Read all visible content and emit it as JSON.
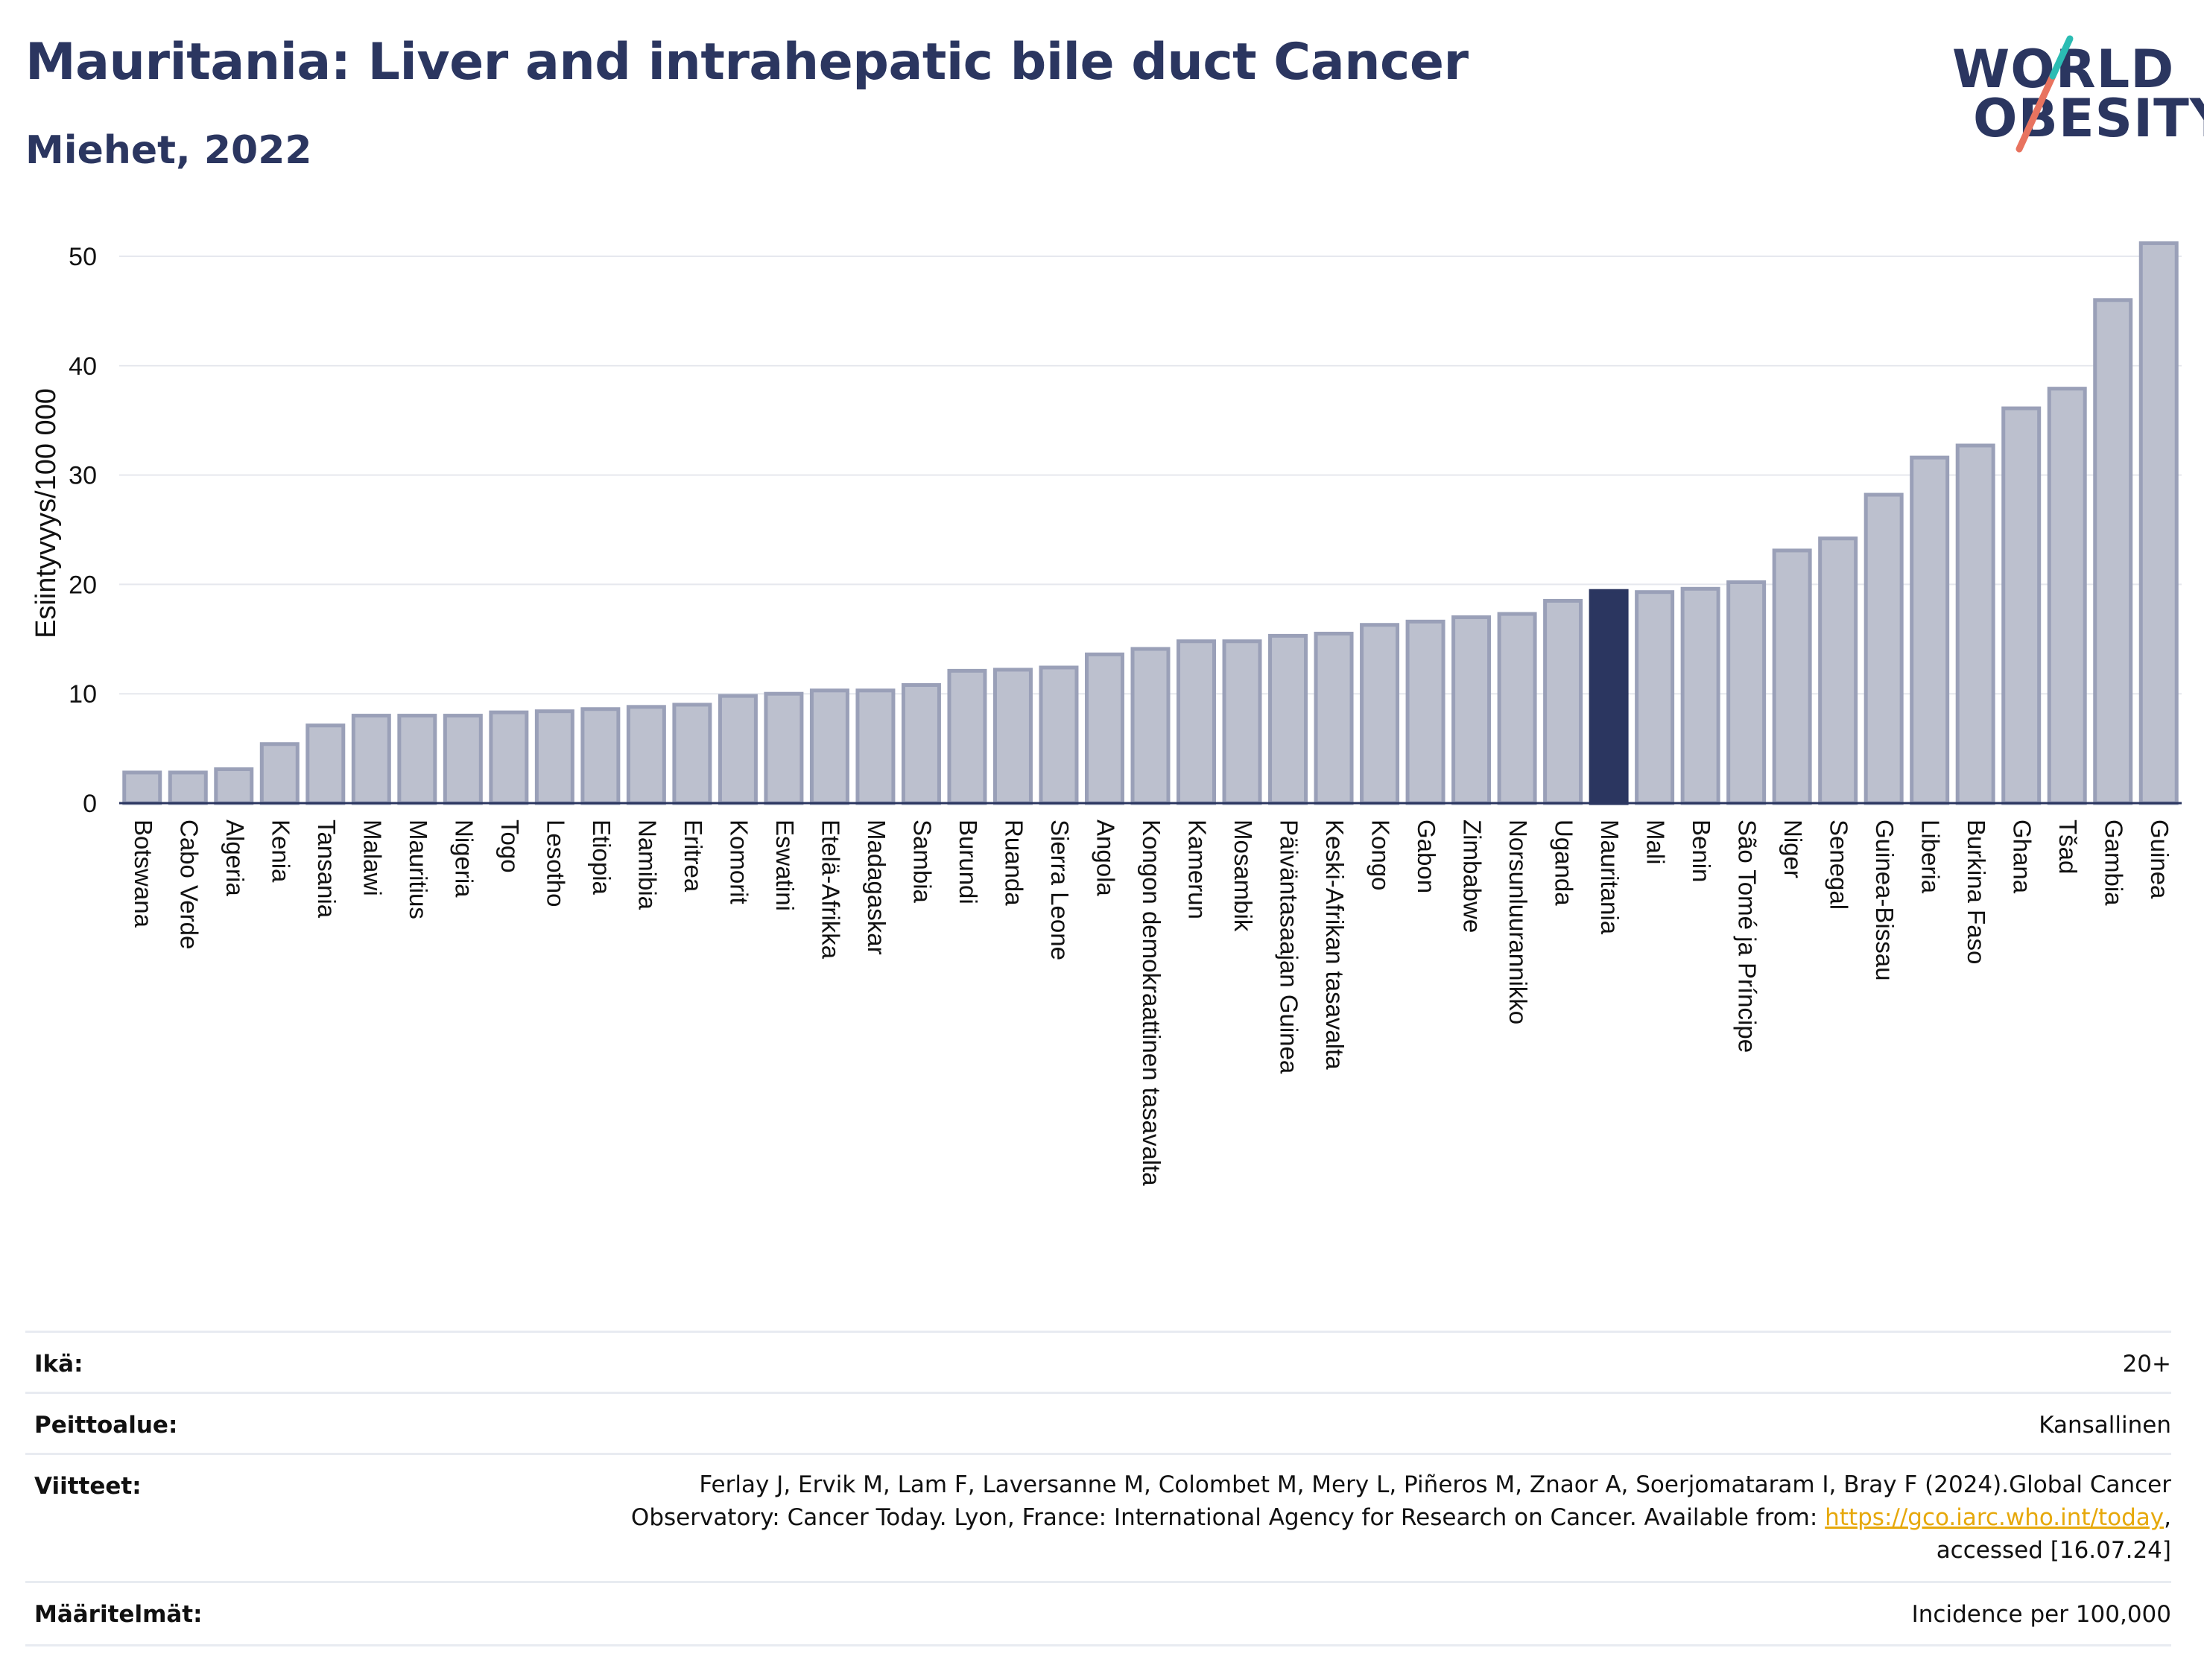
{
  "header": {
    "title": "Mauritania: Liver and intrahepatic bile duct Cancer",
    "subtitle": "Miehet, 2022",
    "logo_line1": "WORLD",
    "logo_line2": "OBESITY"
  },
  "colors": {
    "title": "#2b3660",
    "bar": "#bcc0ce",
    "bar_border": "#9aa0b8",
    "highlight": "#2b3660",
    "logo_teal": "#2bbcb3",
    "logo_coral": "#e8735f"
  },
  "chart_data": {
    "type": "bar",
    "title": "",
    "xlabel": "",
    "ylabel": "Esiintyvyys/100 000",
    "ylim": [
      0,
      53
    ],
    "yticks": [
      0,
      10,
      20,
      30,
      40,
      50
    ],
    "grid": true,
    "highlight": "Mauritania",
    "categories": [
      "Botswana",
      "Cabo Verde",
      "Algeria",
      "Kenia",
      "Tansania",
      "Malawi",
      "Mauritius",
      "Nigeria",
      "Togo",
      "Lesotho",
      "Etiopia",
      "Namibia",
      "Eritrea",
      "Komorit",
      "Eswatini",
      "Etelä-Afrikka",
      "Madagaskar",
      "Sambia",
      "Burundi",
      "Ruanda",
      "Sierra Leone",
      "Angola",
      "Kongon demokraattinen tasavalta",
      "Kamerun",
      "Mosambik",
      "Päiväntasaajan Guinea",
      "Keski-Afrikan tasavalta",
      "Kongo",
      "Gabon",
      "Zimbabwe",
      "Norsunluurannikko",
      "Uganda",
      "Mauritania",
      "Mali",
      "Benin",
      "São Tomé ja Príncipe",
      "Niger",
      "Senegal",
      "Guinea-Bissau",
      "Liberia",
      "Burkina Faso",
      "Ghana",
      "Tšad",
      "Gambia",
      "Guinea"
    ],
    "values": [
      2.8,
      2.8,
      3.1,
      5.4,
      7.1,
      8.0,
      8.0,
      8.0,
      8.3,
      8.4,
      8.6,
      8.8,
      9.0,
      9.8,
      10.0,
      10.3,
      10.3,
      10.8,
      12.1,
      12.2,
      12.4,
      13.6,
      14.1,
      14.8,
      14.8,
      15.3,
      15.5,
      16.3,
      16.6,
      17.0,
      17.3,
      18.5,
      19.4,
      19.3,
      19.6,
      20.2,
      23.1,
      24.2,
      28.2,
      31.6,
      32.7,
      36.1,
      37.9,
      46.0,
      51.2
    ]
  },
  "info": {
    "age_label": "Ikä:",
    "age_value": "20+",
    "coverage_label": "Peittoalue:",
    "coverage_value": "Kansallinen",
    "references_label": "Viitteet:",
    "references_line1": "Ferlay J, Ervik M, Lam F, Laversanne M, Colombet M, Mery L, Piñeros M, Znaor A, Soerjomataram I, Bray F (2024).Global Cancer",
    "references_line2": "Observatory: Cancer Today. Lyon, France: International Agency for Research on Cancer. Available from: ",
    "references_link": "https://gco.iarc.who.int/today",
    "references_line2_end": ",",
    "references_line3": "accessed [16.07.24]",
    "definitions_label": "Määritelmät:",
    "definitions_value": "Incidence per 100,000"
  }
}
